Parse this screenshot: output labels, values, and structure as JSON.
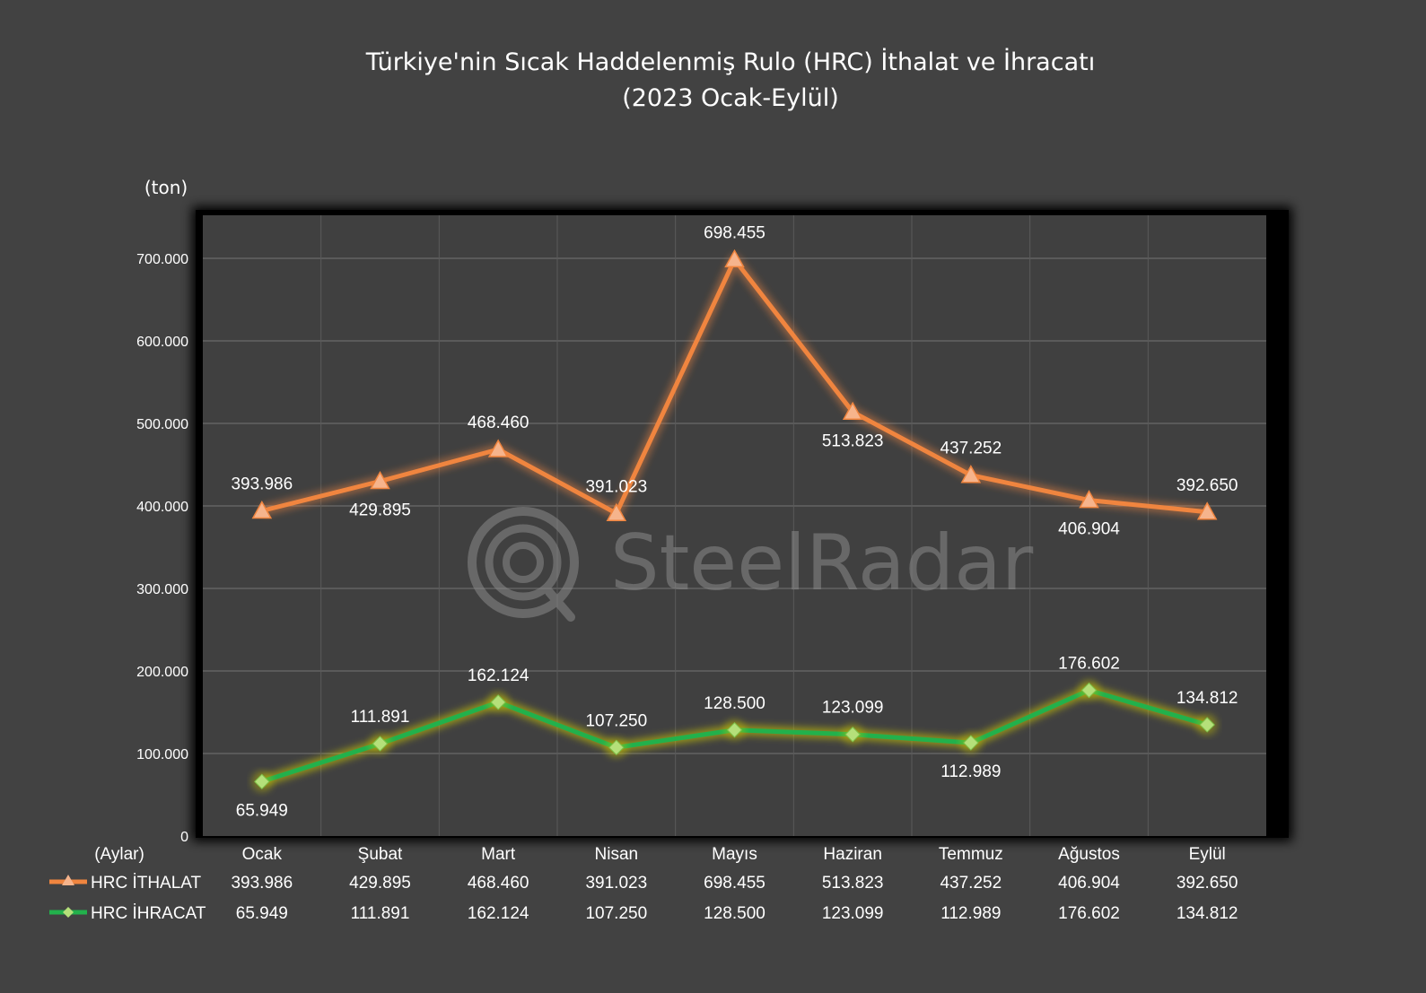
{
  "title": "Türkiye'nin Sıcak Haddelenmiş Rulo (HRC) İthalat ve İhracatı",
  "subtitle": "(2023 Ocak-Eylül)",
  "watermark": "SteelRadar",
  "colors": {
    "background": "#424242",
    "plot_background": "#404040",
    "import_line": "#f0853f",
    "import_marker": "#f6b48c",
    "export_line": "#22b14c",
    "export_marker": "#b5e07a",
    "export_glow": "#d4d000"
  },
  "chart_data": {
    "type": "line",
    "title": "Türkiye'nin Sıcak Haddelenmiş Rulo (HRC) İthalat ve İhracatı",
    "subtitle": "(2023 Ocak-Eylül)",
    "ylabel": "(ton)",
    "xlabel": "(Aylar)",
    "ylim": [
      0,
      750000
    ],
    "yticks": [
      0,
      100000,
      200000,
      300000,
      400000,
      500000,
      600000,
      700000
    ],
    "ytick_labels": [
      "0",
      "100.000",
      "200.000",
      "300.000",
      "400.000",
      "500.000",
      "600.000",
      "700.000"
    ],
    "grid": true,
    "legend": "data-table-below",
    "categories": [
      "Ocak",
      "Şubat",
      "Mart",
      "Nisan",
      "Mayıs",
      "Haziran",
      "Temmuz",
      "Ağustos",
      "Eylül"
    ],
    "series": [
      {
        "name": "HRC İTHALAT",
        "marker": "triangle",
        "values": [
          393986,
          429895,
          468460,
          391023,
          698455,
          513823,
          437252,
          406904,
          392650
        ],
        "labels": [
          "393.986",
          "429.895",
          "468.460",
          "391.023",
          "698.455",
          "513.823",
          "437.252",
          "406.904",
          "392.650"
        ],
        "label_pos": [
          "above",
          "below",
          "above",
          "above",
          "above",
          "below",
          "above",
          "below",
          "above"
        ]
      },
      {
        "name": "HRC İHRACAT",
        "marker": "diamond",
        "values": [
          65949,
          111891,
          162124,
          107250,
          128500,
          123099,
          112989,
          176602,
          134812
        ],
        "labels": [
          "65.949",
          "111.891",
          "162.124",
          "107.250",
          "128.500",
          "123.099",
          "112.989",
          "176.602",
          "134.812"
        ],
        "label_pos": [
          "below",
          "above",
          "above",
          "above",
          "above",
          "above",
          "below",
          "above",
          "above"
        ]
      }
    ]
  }
}
